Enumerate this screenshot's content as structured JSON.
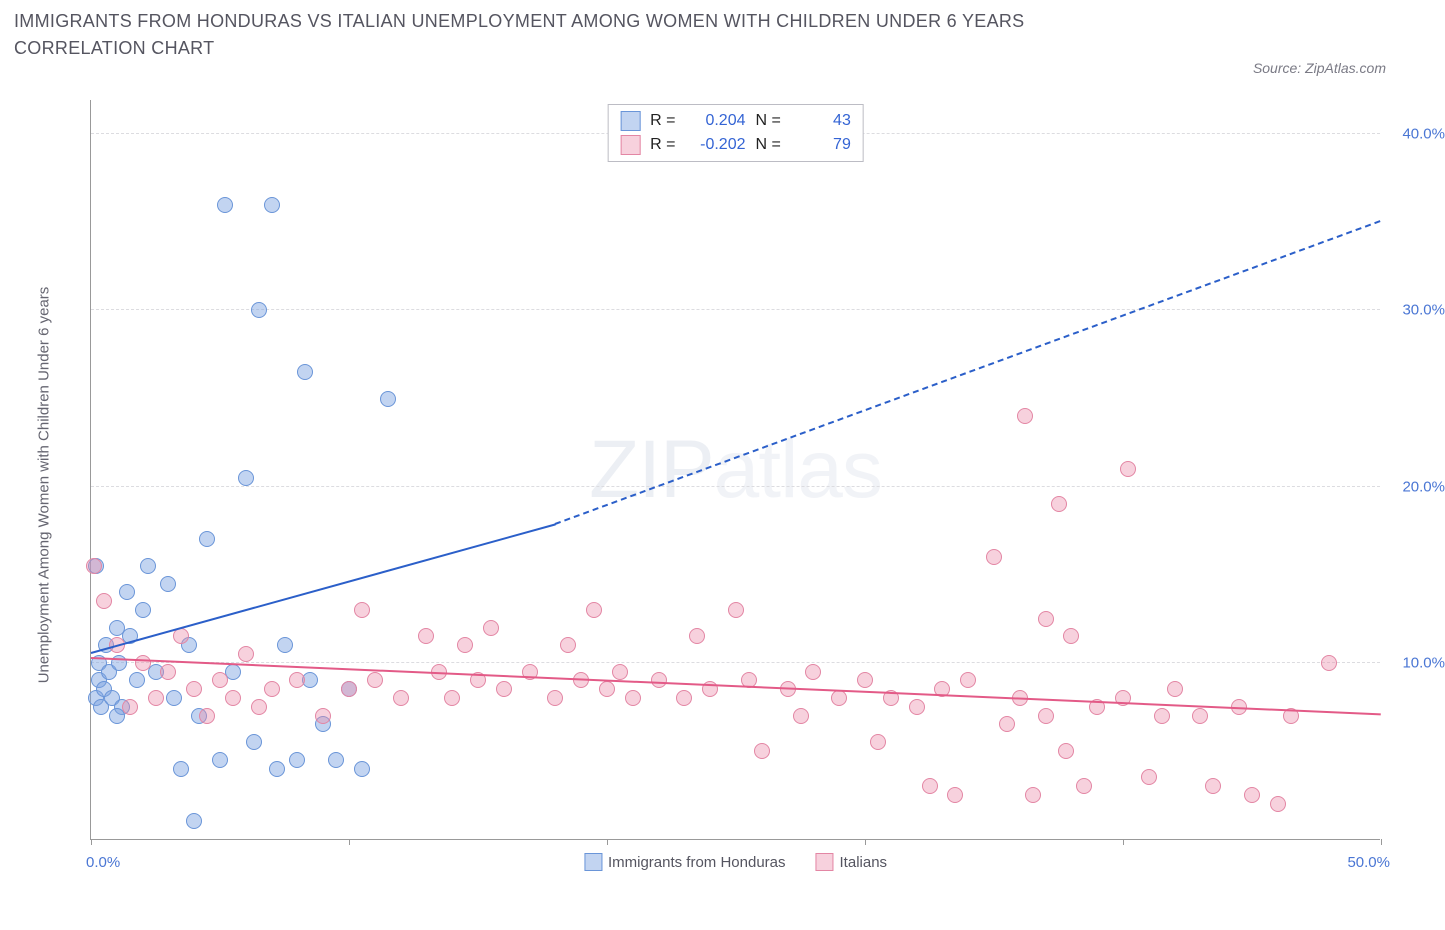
{
  "title": "IMMIGRANTS FROM HONDURAS VS ITALIAN UNEMPLOYMENT AMONG WOMEN WITH CHILDREN UNDER 6 YEARS CORRELATION CHART",
  "source": "Source: ZipAtlas.com",
  "watermark_bold": "ZIP",
  "watermark_thin": "atlas",
  "y_axis_label": "Unemployment Among Women with Children Under 6 years",
  "chart": {
    "type": "scatter-correlation",
    "xlim": [
      0,
      50
    ],
    "ylim": [
      0,
      42
    ],
    "x_ticks": [
      0,
      10,
      20,
      30,
      40,
      50
    ],
    "x_tick_label_min": "0.0%",
    "x_tick_label_max": "50.0%",
    "y_ticks": [
      10,
      20,
      30,
      40
    ],
    "y_tick_labels": [
      "10.0%",
      "20.0%",
      "30.0%",
      "40.0%"
    ],
    "grid_color": "#dcdce0",
    "background_color": "#ffffff",
    "axis_color": "#999999",
    "series": [
      {
        "id": "honduras",
        "label": "Immigrants from Honduras",
        "legend_label": "Immigrants from Honduras",
        "marker_fill": "rgba(120,160,225,0.45)",
        "marker_stroke": "#6a95d8",
        "marker_radius": 8,
        "trend_color": "#2b5fc9",
        "r_label": "R =",
        "r_value": "0.204",
        "n_label": "N =",
        "n_value": "43",
        "trend": {
          "x1": 0,
          "y1": 10.5,
          "x2_solid": 18,
          "y2_solid": 17.8,
          "x2_dash": 50,
          "y2_dash": 35.0
        },
        "points": [
          [
            0.2,
            8.0
          ],
          [
            0.3,
            9.0
          ],
          [
            0.4,
            7.5
          ],
          [
            0.3,
            10.0
          ],
          [
            0.5,
            8.5
          ],
          [
            0.6,
            11.0
          ],
          [
            0.7,
            9.5
          ],
          [
            0.8,
            8.0
          ],
          [
            1.0,
            12.0
          ],
          [
            1.1,
            10.0
          ],
          [
            1.2,
            7.5
          ],
          [
            1.5,
            11.5
          ],
          [
            1.4,
            14.0
          ],
          [
            1.8,
            9.0
          ],
          [
            2.0,
            13.0
          ],
          [
            2.2,
            15.5
          ],
          [
            2.5,
            9.5
          ],
          [
            3.0,
            14.5
          ],
          [
            3.2,
            8.0
          ],
          [
            3.5,
            4.0
          ],
          [
            3.8,
            11.0
          ],
          [
            4.0,
            1.0
          ],
          [
            4.2,
            7.0
          ],
          [
            4.5,
            17.0
          ],
          [
            5.0,
            4.5
          ],
          [
            5.2,
            36.0
          ],
          [
            5.5,
            9.5
          ],
          [
            6.0,
            20.5
          ],
          [
            6.3,
            5.5
          ],
          [
            6.5,
            30.0
          ],
          [
            7.0,
            36.0
          ],
          [
            7.2,
            4.0
          ],
          [
            7.5,
            11.0
          ],
          [
            8.0,
            4.5
          ],
          [
            8.3,
            26.5
          ],
          [
            8.5,
            9.0
          ],
          [
            9.0,
            6.5
          ],
          [
            9.5,
            4.5
          ],
          [
            10.0,
            8.5
          ],
          [
            10.5,
            4.0
          ],
          [
            11.5,
            25.0
          ],
          [
            0.2,
            15.5
          ],
          [
            1.0,
            7.0
          ]
        ]
      },
      {
        "id": "italians",
        "label": "Italians",
        "legend_label": "Italians",
        "marker_fill": "rgba(235,140,170,0.40)",
        "marker_stroke": "#e386a4",
        "marker_radius": 8,
        "trend_color": "#e35a87",
        "r_label": "R =",
        "r_value": "-0.202",
        "n_label": "N =",
        "n_value": "79",
        "trend": {
          "x1": 0,
          "y1": 10.2,
          "x2_solid": 50,
          "y2_solid": 7.0,
          "x2_dash": 50,
          "y2_dash": 7.0
        },
        "points": [
          [
            0.1,
            15.5
          ],
          [
            0.5,
            13.5
          ],
          [
            1.0,
            11.0
          ],
          [
            1.5,
            7.5
          ],
          [
            2.0,
            10.0
          ],
          [
            2.5,
            8.0
          ],
          [
            3.0,
            9.5
          ],
          [
            3.5,
            11.5
          ],
          [
            4.0,
            8.5
          ],
          [
            4.5,
            7.0
          ],
          [
            5.0,
            9.0
          ],
          [
            5.5,
            8.0
          ],
          [
            6.0,
            10.5
          ],
          [
            6.5,
            7.5
          ],
          [
            7.0,
            8.5
          ],
          [
            8.0,
            9.0
          ],
          [
            9.0,
            7.0
          ],
          [
            10.0,
            8.5
          ],
          [
            10.5,
            13.0
          ],
          [
            11.0,
            9.0
          ],
          [
            12.0,
            8.0
          ],
          [
            13.0,
            11.5
          ],
          [
            13.5,
            9.5
          ],
          [
            14.0,
            8.0
          ],
          [
            14.5,
            11.0
          ],
          [
            15.0,
            9.0
          ],
          [
            15.5,
            12.0
          ],
          [
            16.0,
            8.5
          ],
          [
            17.0,
            9.5
          ],
          [
            18.0,
            8.0
          ],
          [
            18.5,
            11.0
          ],
          [
            19.0,
            9.0
          ],
          [
            19.5,
            13.0
          ],
          [
            20.0,
            8.5
          ],
          [
            20.5,
            9.5
          ],
          [
            21.0,
            8.0
          ],
          [
            22.0,
            9.0
          ],
          [
            23.0,
            8.0
          ],
          [
            23.5,
            11.5
          ],
          [
            24.0,
            8.5
          ],
          [
            25.0,
            13.0
          ],
          [
            25.5,
            9.0
          ],
          [
            26.0,
            5.0
          ],
          [
            27.0,
            8.5
          ],
          [
            27.5,
            7.0
          ],
          [
            28.0,
            9.5
          ],
          [
            29.0,
            8.0
          ],
          [
            30.0,
            9.0
          ],
          [
            30.5,
            5.5
          ],
          [
            31.0,
            8.0
          ],
          [
            32.0,
            7.5
          ],
          [
            32.5,
            3.0
          ],
          [
            33.0,
            8.5
          ],
          [
            33.5,
            2.5
          ],
          [
            34.0,
            9.0
          ],
          [
            35.0,
            16.0
          ],
          [
            35.5,
            6.5
          ],
          [
            36.0,
            8.0
          ],
          [
            36.2,
            24.0
          ],
          [
            36.5,
            2.5
          ],
          [
            37.0,
            7.0
          ],
          [
            37.5,
            19.0
          ],
          [
            37.8,
            5.0
          ],
          [
            38.0,
            11.5
          ],
          [
            38.5,
            3.0
          ],
          [
            39.0,
            7.5
          ],
          [
            40.0,
            8.0
          ],
          [
            40.2,
            21.0
          ],
          [
            41.0,
            3.5
          ],
          [
            41.5,
            7.0
          ],
          [
            42.0,
            8.5
          ],
          [
            43.0,
            7.0
          ],
          [
            43.5,
            3.0
          ],
          [
            44.5,
            7.5
          ],
          [
            45.0,
            2.5
          ],
          [
            46.0,
            2.0
          ],
          [
            46.5,
            7.0
          ],
          [
            48.0,
            10.0
          ],
          [
            37.0,
            12.5
          ]
        ]
      }
    ]
  },
  "bottom_legend": [
    {
      "label": "Immigrants from Honduras",
      "fill": "rgba(120,160,225,0.45)",
      "stroke": "#6a95d8"
    },
    {
      "label": "Italians",
      "fill": "rgba(235,140,170,0.40)",
      "stroke": "#e386a4"
    }
  ]
}
